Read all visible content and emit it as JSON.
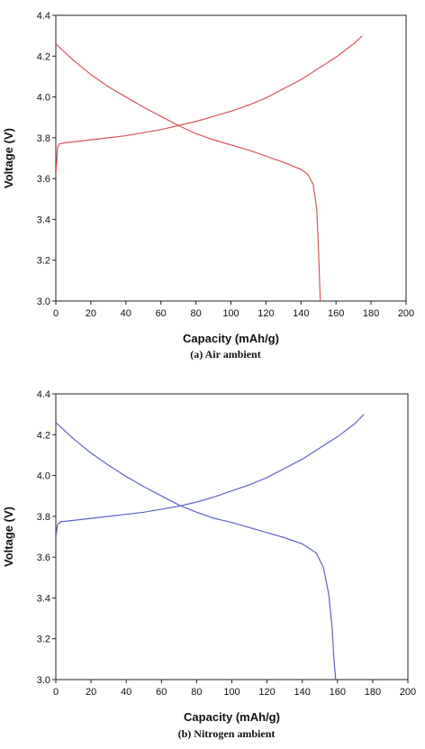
{
  "chart_data": [
    {
      "type": "line",
      "caption": "(a)  Air ambient",
      "xlabel": "Capacity (mAh/g)",
      "ylabel": "Voltage (V)",
      "xlim": [
        0,
        200
      ],
      "ylim": [
        3.0,
        4.4
      ],
      "xticks": [
        0,
        20,
        40,
        60,
        80,
        100,
        120,
        140,
        160,
        180,
        200
      ],
      "yticks": [
        "3.0",
        "3.2",
        "3.4",
        "3.6",
        "3.8",
        "4.0",
        "4.2",
        "4.4"
      ],
      "grid": false,
      "line_color": "#d9545a",
      "series": [
        {
          "points": [
            [
              0,
              3.62
            ],
            [
              1,
              3.75
            ],
            [
              2,
              3.77
            ],
            [
              5,
              3.775
            ],
            [
              10,
              3.78
            ],
            [
              20,
              3.79
            ],
            [
              30,
              3.8
            ],
            [
              40,
              3.81
            ],
            [
              50,
              3.825
            ],
            [
              60,
              3.84
            ],
            [
              70,
              3.86
            ],
            [
              80,
              3.88
            ],
            [
              90,
              3.905
            ],
            [
              100,
              3.93
            ],
            [
              110,
              3.96
            ],
            [
              120,
              3.995
            ],
            [
              130,
              4.04
            ],
            [
              140,
              4.085
            ],
            [
              150,
              4.14
            ],
            [
              160,
              4.195
            ],
            [
              170,
              4.26
            ],
            [
              175,
              4.3
            ]
          ]
        },
        {
          "points": [
            [
              0,
              4.26
            ],
            [
              5,
              4.22
            ],
            [
              10,
              4.18
            ],
            [
              20,
              4.11
            ],
            [
              30,
              4.05
            ],
            [
              40,
              4.0
            ],
            [
              50,
              3.95
            ],
            [
              60,
              3.905
            ],
            [
              70,
              3.86
            ],
            [
              80,
              3.82
            ],
            [
              90,
              3.79
            ],
            [
              100,
              3.765
            ],
            [
              110,
              3.74
            ],
            [
              120,
              3.71
            ],
            [
              130,
              3.68
            ],
            [
              140,
              3.645
            ],
            [
              144,
              3.62
            ],
            [
              147,
              3.57
            ],
            [
              149,
              3.45
            ],
            [
              150,
              3.25
            ],
            [
              151,
              3.0
            ]
          ]
        }
      ]
    },
    {
      "type": "line",
      "caption": "(b)  Nitrogen ambient",
      "xlabel": "Capacity (mAh/g)",
      "ylabel": "Voltage (V)",
      "xlim": [
        0,
        200
      ],
      "ylim": [
        3.0,
        4.4
      ],
      "xticks": [
        0,
        20,
        40,
        60,
        80,
        100,
        120,
        140,
        160,
        180,
        200
      ],
      "yticks": [
        "3.0",
        "3.2",
        "3.4",
        "3.6",
        "3.8",
        "4.0",
        "4.2",
        "4.4"
      ],
      "grid": false,
      "line_color": "#5a62c8",
      "series": [
        {
          "points": [
            [
              0,
              3.7
            ],
            [
              1,
              3.76
            ],
            [
              3,
              3.775
            ],
            [
              5,
              3.775
            ],
            [
              10,
              3.78
            ],
            [
              20,
              3.79
            ],
            [
              30,
              3.8
            ],
            [
              40,
              3.81
            ],
            [
              50,
              3.82
            ],
            [
              60,
              3.835
            ],
            [
              70,
              3.85
            ],
            [
              80,
              3.87
            ],
            [
              90,
              3.895
            ],
            [
              100,
              3.925
            ],
            [
              110,
              3.955
            ],
            [
              120,
              3.99
            ],
            [
              130,
              4.035
            ],
            [
              140,
              4.08
            ],
            [
              150,
              4.135
            ],
            [
              160,
              4.19
            ],
            [
              170,
              4.255
            ],
            [
              175,
              4.3
            ]
          ]
        },
        {
          "points": [
            [
              0,
              4.26
            ],
            [
              5,
              4.22
            ],
            [
              10,
              4.18
            ],
            [
              20,
              4.11
            ],
            [
              30,
              4.05
            ],
            [
              40,
              3.995
            ],
            [
              50,
              3.945
            ],
            [
              60,
              3.9
            ],
            [
              70,
              3.855
            ],
            [
              80,
              3.82
            ],
            [
              90,
              3.79
            ],
            [
              100,
              3.77
            ],
            [
              110,
              3.745
            ],
            [
              120,
              3.72
            ],
            [
              130,
              3.695
            ],
            [
              140,
              3.665
            ],
            [
              148,
              3.62
            ],
            [
              152,
              3.55
            ],
            [
              155,
              3.42
            ],
            [
              157,
              3.25
            ],
            [
              158,
              3.1
            ],
            [
              159,
              3.0
            ]
          ]
        }
      ]
    }
  ]
}
